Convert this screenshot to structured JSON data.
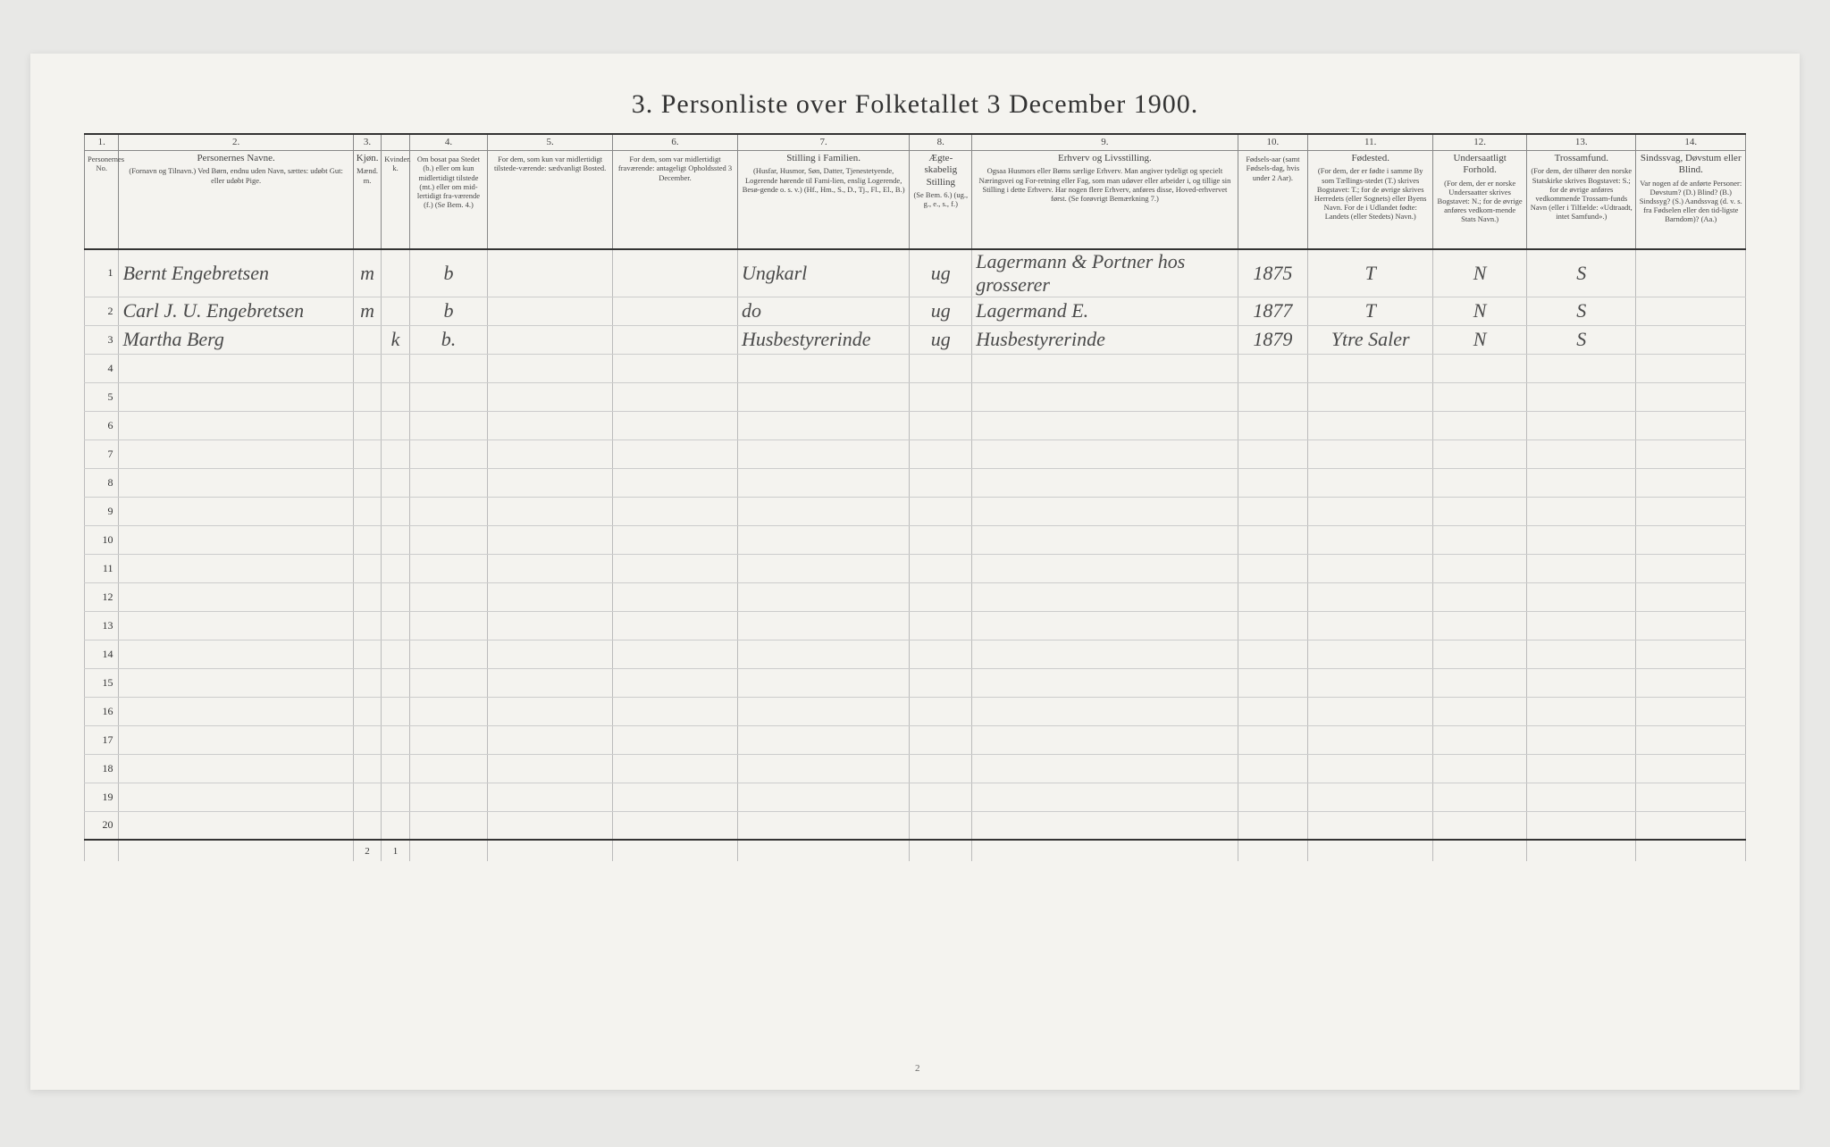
{
  "title": "3. Personliste over Folketallet 3 December 1900.",
  "page_number": "2",
  "colors": {
    "page_bg": "#f4f3ef",
    "body_bg": "#e8e8e6",
    "border_heavy": "#333333",
    "border_light": "#bbbbbb",
    "text": "#333333",
    "handwriting": "#4a4a4a"
  },
  "column_widths_pct": [
    2.2,
    15,
    1.8,
    1.8,
    5,
    8,
    8,
    11,
    4,
    17,
    4.5,
    8,
    6,
    7,
    7
  ],
  "columns": [
    {
      "num": "1.",
      "title": "",
      "sub": "Personernes No."
    },
    {
      "num": "2.",
      "title": "Personernes Navne.",
      "sub": "(Fornavn og Tilnavn.)\nVed Børn, endnu uden Navn, sættes: udøbt Gut: eller udøbt Pige."
    },
    {
      "num": "3.",
      "title": "Kjøn.",
      "sub": "Mænd. m."
    },
    {
      "num": "",
      "title": "",
      "sub": "Kvinder. k."
    },
    {
      "num": "4.",
      "title": "",
      "sub": "Om bosat paa Stedet (b.) eller om kun midlertidigt tilstede (mt.) eller om mid-lertidigt fra-værende (f.) (Se Bem. 4.)"
    },
    {
      "num": "5.",
      "title": "",
      "sub": "For dem, som kun var midlertidigt tilstede-værende:\nsædvanligt Bosted."
    },
    {
      "num": "6.",
      "title": "",
      "sub": "For dem, som var midlertidigt fraværende:\nantageligt Opholdssted 3 December."
    },
    {
      "num": "7.",
      "title": "Stilling i Familien.",
      "sub": "(Husfar, Husmor, Søn, Datter, Tjenestetyende, Logerende hørende til Fami-lien, enslig Logerende, Besø-gende o. s. v.)\n(Hf., Hm., S., D., Tj., Fl., El., B.)"
    },
    {
      "num": "8.",
      "title": "Ægte-skabelig Stilling",
      "sub": "(Se Bem. 6.)\n(ug., g., e., s., f.)"
    },
    {
      "num": "9.",
      "title": "Erhverv og Livsstilling.",
      "sub": "Ogsaa Husmors eller Børns særlige Erhverv. Man angiver tydeligt og specielt Næringsvei og For-retning eller Fag, som man udøver eller arbeider i, og tillige sin Stilling i dette Erhverv. Har nogen flere Erhverv, anføres disse, Hoved-erhvervet først.\n(Se forøvrigt Bemærkning 7.)"
    },
    {
      "num": "10.",
      "title": "",
      "sub": "Fødsels-aar (samt Fødsels-dag, hvis under 2 Aar)."
    },
    {
      "num": "11.",
      "title": "Fødested.",
      "sub": "(For dem, der er fødte i samme By som Tællings-stedet (T.) skrives Bogstavet: T.; for de øvrige skrives Herredets (eller Sognets) eller Byens Navn. For de i Udlandet fødte: Landets (eller Stedets) Navn.)"
    },
    {
      "num": "12.",
      "title": "Undersaatligt Forhold.",
      "sub": "(For dem, der er norske Undersaatter skrives Bogstavet: N.; for de øvrige anføres vedkom-mende Stats Navn.)"
    },
    {
      "num": "13.",
      "title": "Trossamfund.",
      "sub": "(For dem, der tilhører den norske Statskirke skrives Bogstavet: S.; for de øvrige anføres vedkommende Trossam-funds Navn (eller i Tilfælde: «Udtraadt, intet Samfund».)"
    },
    {
      "num": "14.",
      "title": "Sindssvag, Døvstum eller Blind.",
      "sub": "Var nogen af de anførte Personer:\nDøvstum? (D.)\nBlind? (B.)\nSindssyg? (S.)\nAandssvag (d. v. s. fra Fødselen eller den tid-ligste Barndom)? (Aa.)"
    }
  ],
  "rows": [
    {
      "n": "1",
      "name": "Bernt Engebretsen",
      "m": "m",
      "k": "",
      "res": "b",
      "away": "",
      "absent": "",
      "family": "Ungkarl",
      "maritial": "ug",
      "occupation": "Lagermann & Portner hos grosserer",
      "year": "1875",
      "birthplace": "T",
      "subject": "N",
      "faith": "S",
      "disab": ""
    },
    {
      "n": "2",
      "name": "Carl J. U. Engebretsen",
      "m": "m",
      "k": "",
      "res": "b",
      "away": "",
      "absent": "",
      "family": "do",
      "maritial": "ug",
      "occupation": "Lagermand E.",
      "year": "1877",
      "birthplace": "T",
      "subject": "N",
      "faith": "S",
      "disab": ""
    },
    {
      "n": "3",
      "name": "Martha Berg",
      "m": "",
      "k": "k",
      "res": "b.",
      "away": "",
      "absent": "",
      "family": "Husbestyrerinde",
      "maritial": "ug",
      "occupation": "Husbestyrerinde",
      "year": "1879",
      "birthplace": "Ytre Saler",
      "subject": "N",
      "faith": "S",
      "disab": ""
    }
  ],
  "empty_rows": [
    "4",
    "5",
    "6",
    "7",
    "8",
    "9",
    "10",
    "11",
    "12",
    "13",
    "14",
    "15",
    "16",
    "17",
    "18",
    "19",
    "20"
  ],
  "footer": {
    "m_total": "2",
    "k_total": "1"
  }
}
